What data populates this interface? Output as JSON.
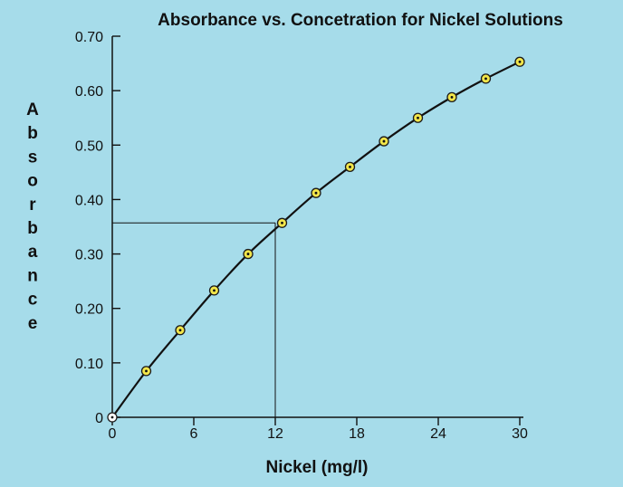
{
  "chart_data": {
    "type": "line",
    "title": "Absorbance vs. Concetration for Nickel Solutions",
    "xlabel": "Nickel (mg/l)",
    "ylabel": "Absorbance",
    "x_ticks": [
      "0",
      "6",
      "12",
      "18",
      "24",
      "30"
    ],
    "y_ticks": [
      "0",
      "0.10",
      "0.20",
      "0.30",
      "0.40",
      "0.50",
      "0.60",
      "0.70"
    ],
    "xlim": [
      0,
      30
    ],
    "ylim": [
      0,
      0.7
    ],
    "grid": false,
    "series": [
      {
        "x": [
          0,
          2.5,
          5,
          7.5,
          10,
          12.5,
          15,
          17.5,
          20,
          22.5,
          25,
          27.5,
          30
        ],
        "y": [
          0,
          0.085,
          0.16,
          0.233,
          0.3,
          0.357,
          0.412,
          0.46,
          0.507,
          0.55,
          0.588,
          0.622,
          0.653
        ]
      }
    ],
    "reference_lines": {
      "x": 12,
      "y": 0.357
    },
    "colors": {
      "background": "#a6dcea",
      "axis": "#111111",
      "marker_fill": "#f2e64a",
      "marker_stroke": "#1b1b1b",
      "origin_marker": "#ffffff"
    }
  }
}
